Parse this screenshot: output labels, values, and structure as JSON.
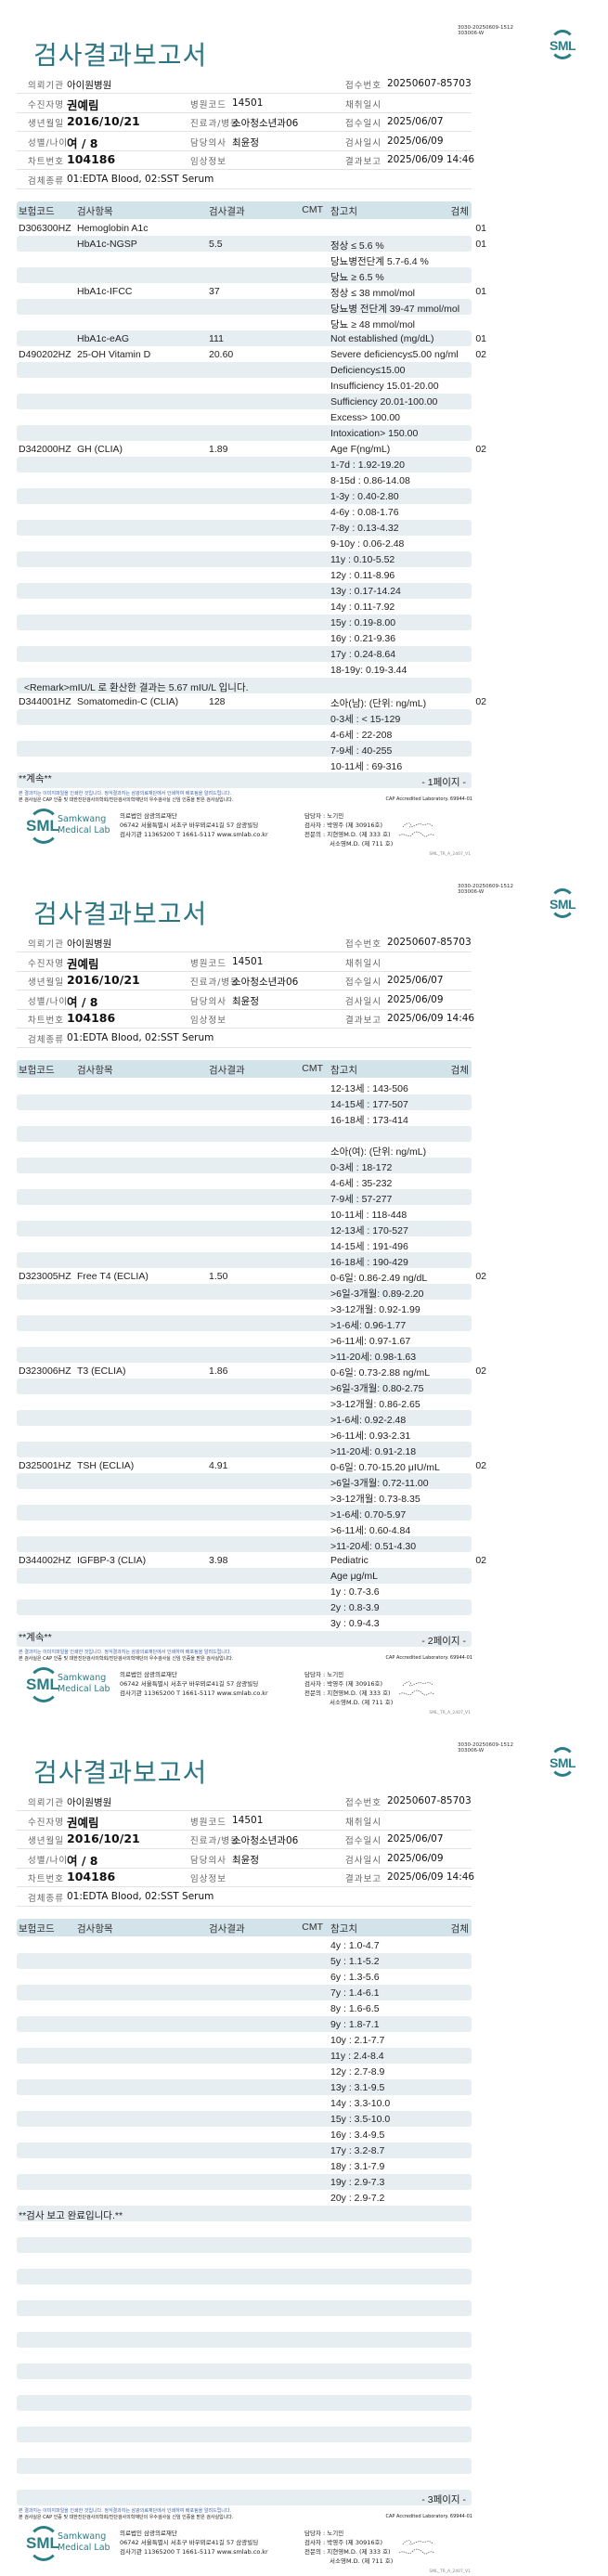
{
  "document": {
    "title": "검사결과보고서",
    "doc_code_1": "3030-20250609-1512",
    "doc_code_2": "303006-W",
    "logo_text": "SML",
    "brand_color": "#2b7481"
  },
  "patient": {
    "institution_label": "의뢰기관",
    "institution": "아이원병원",
    "receipt_no_label": "접수번호",
    "receipt_no": "20250607-85703",
    "name_label": "수진자명",
    "name": "권예림",
    "hospital_code_label": "병원코드",
    "hospital_code": "14501",
    "collection_label": "채취일시",
    "collection": "",
    "birth_label": "생년월일",
    "birth": "2016/10/21",
    "dept_label": "진료과/병동",
    "dept": "소아청소년과06",
    "received_label": "접수일시",
    "received": "2025/06/07",
    "sex_age_label": "성별/나이",
    "sex_age": "여 / 8",
    "doctor_label": "담당의사",
    "doctor": "최윤정",
    "tested_label": "검사일시",
    "tested": "2025/06/09",
    "chart_label": "차트번호",
    "chart": "104186",
    "clinical_label": "임상정보",
    "clinical": "",
    "reported_label": "결과보고",
    "reported": "2025/06/09 14:46",
    "specimen_label": "검체종류",
    "specimen": "01:EDTA Blood, 02:SST Serum"
  },
  "table_headers": [
    "보험코드",
    "검사항목",
    "검사결과",
    "CMT",
    "참고치",
    "검체"
  ],
  "pages": [
    {
      "continue_note": "**계속**",
      "page_label": "- 1페이지 -",
      "rows": [
        [
          "D306300HZ",
          "Hemoglobin A1c",
          "",
          "",
          "",
          "01"
        ],
        [
          "",
          "HbA1c-NGSP",
          "5.5",
          "",
          "정상 ≤ 5.6 %",
          "01"
        ],
        [
          "",
          "",
          "",
          "",
          "당뇨병전단계 5.7-6.4 %",
          ""
        ],
        [
          "",
          "",
          "",
          "",
          "당뇨 ≥ 6.5 %",
          ""
        ],
        [
          "",
          "HbA1c-IFCC",
          "37",
          "",
          "정상 ≤ 38 mmol/mol",
          "01"
        ],
        [
          "",
          "",
          "",
          "",
          "당뇨병 전단계 39-47 mmol/mol",
          ""
        ],
        [
          "",
          "",
          "",
          "",
          "당뇨 ≥ 48 mmol/mol",
          ""
        ],
        [
          "",
          "HbA1c-eAG",
          "111",
          "",
          "Not established (mg/dL)",
          "01"
        ],
        [
          "D490202HZ",
          "25-OH Vitamin D",
          "20.60",
          "",
          "Severe deficiency≤5.00 ng/ml",
          "02"
        ],
        [
          "",
          "",
          "",
          "",
          "Deficiency≤15.00",
          ""
        ],
        [
          "",
          "",
          "",
          "",
          "Insufficiency 15.01-20.00",
          ""
        ],
        [
          "",
          "",
          "",
          "",
          "Sufficiency 20.01-100.00",
          ""
        ],
        [
          "",
          "",
          "",
          "",
          "Excess> 100.00",
          ""
        ],
        [
          "",
          "",
          "",
          "",
          "Intoxication> 150.00",
          ""
        ],
        [
          "D342000HZ",
          "GH (CLIA)",
          "1.89",
          "",
          "Age F(ng/mL)",
          "02"
        ],
        [
          "",
          "",
          "",
          "",
          "1-7d : 1.92-19.20",
          ""
        ],
        [
          "",
          "",
          "",
          "",
          "8-15d : 0.86-14.08",
          ""
        ],
        [
          "",
          "",
          "",
          "",
          "1-3y : 0.40-2.80",
          ""
        ],
        [
          "",
          "",
          "",
          "",
          "4-6y : 0.08-1.76",
          ""
        ],
        [
          "",
          "",
          "",
          "",
          "7-8y : 0.13-4.32",
          ""
        ],
        [
          "",
          "",
          "",
          "",
          "9-10y : 0.06-2.48",
          ""
        ],
        [
          "",
          "",
          "",
          "",
          "11y : 0.10-5.52",
          ""
        ],
        [
          "",
          "",
          "",
          "",
          "12y : 0.11-8.96",
          ""
        ],
        [
          "",
          "",
          "",
          "",
          "13y : 0.17-14.24",
          ""
        ],
        [
          "",
          "",
          "",
          "",
          "14y : 0.11-7.92",
          ""
        ],
        [
          "",
          "",
          "",
          "",
          "15y : 0.19-8.00",
          ""
        ],
        [
          "",
          "",
          "",
          "",
          "16y : 0.21-9.36",
          ""
        ],
        [
          "",
          "",
          "",
          "",
          "17y : 0.24-8.64",
          ""
        ],
        [
          "",
          "",
          "",
          "",
          "18-19y: 0.19-3.44",
          ""
        ],
        [
          "  <Remark>mIU/L 로 환산한 결과는 5.67 mIU/L 입니다."
        ],
        [
          "D344001HZ",
          "Somatomedin-C (CLIA)",
          "128",
          "",
          "소아(남): (단위: ng/mL)",
          "02"
        ],
        [
          "",
          "",
          "",
          "",
          "0-3세 : < 15-129",
          ""
        ],
        [
          "",
          "",
          "",
          "",
          "4-6세 : 22-208",
          ""
        ],
        [
          "",
          "",
          "",
          "",
          "7-9세 : 40-255",
          ""
        ],
        [
          "",
          "",
          "",
          "",
          "10-11세 : 69-316",
          ""
        ]
      ]
    },
    {
      "continue_note": "**계속**",
      "page_label": "- 2페이지 -",
      "rows": [
        [
          "",
          "",
          "",
          "",
          "12-13세 : 143-506",
          ""
        ],
        [
          "",
          "",
          "",
          "",
          "14-15세 : 177-507",
          ""
        ],
        [
          "",
          "",
          "",
          "",
          "16-18세 : 173-414",
          ""
        ],
        [
          "",
          "",
          "",
          "",
          "",
          ""
        ],
        [
          "",
          "",
          "",
          "",
          "소아(여): (단위: ng/mL)",
          ""
        ],
        [
          "",
          "",
          "",
          "",
          "0-3세 : 18-172",
          ""
        ],
        [
          "",
          "",
          "",
          "",
          "4-6세 : 35-232",
          ""
        ],
        [
          "",
          "",
          "",
          "",
          "7-9세 : 57-277",
          ""
        ],
        [
          "",
          "",
          "",
          "",
          "10-11세 : 118-448",
          ""
        ],
        [
          "",
          "",
          "",
          "",
          "12-13세 : 170-527",
          ""
        ],
        [
          "",
          "",
          "",
          "",
          "14-15세 : 191-496",
          ""
        ],
        [
          "",
          "",
          "",
          "",
          "16-18세 : 190-429",
          ""
        ],
        [
          "D323005HZ",
          "Free T4 (ECLIA)",
          "1.50",
          "",
          "0-6일: 0.86-2.49 ng/dL",
          "02"
        ],
        [
          "",
          "",
          "",
          "",
          ">6일-3개월: 0.89-2.20",
          ""
        ],
        [
          "",
          "",
          "",
          "",
          ">3-12개월: 0.92-1.99",
          ""
        ],
        [
          "",
          "",
          "",
          "",
          ">1-6세: 0.96-1.77",
          ""
        ],
        [
          "",
          "",
          "",
          "",
          ">6-11세: 0.97-1.67",
          ""
        ],
        [
          "",
          "",
          "",
          "",
          ">11-20세: 0.98-1.63",
          ""
        ],
        [
          "D323006HZ",
          "T3 (ECLIA)",
          "1.86",
          "",
          "0-6일: 0.73-2.88 ng/mL",
          "02"
        ],
        [
          "",
          "",
          "",
          "",
          ">6일-3개월: 0.80-2.75",
          ""
        ],
        [
          "",
          "",
          "",
          "",
          ">3-12개월: 0.86-2.65",
          ""
        ],
        [
          "",
          "",
          "",
          "",
          ">1-6세: 0.92-2.48",
          ""
        ],
        [
          "",
          "",
          "",
          "",
          ">6-11세: 0.93-2.31",
          ""
        ],
        [
          "",
          "",
          "",
          "",
          ">11-20세: 0.91-2.18",
          ""
        ],
        [
          "D325001HZ",
          "TSH (ECLIA)",
          "4.91",
          "",
          "0-6일: 0.70-15.20 μIU/mL",
          "02"
        ],
        [
          "",
          "",
          "",
          "",
          ">6일-3개월: 0.72-11.00",
          ""
        ],
        [
          "",
          "",
          "",
          "",
          ">3-12개월: 0.73-8.35",
          ""
        ],
        [
          "",
          "",
          "",
          "",
          ">1-6세: 0.70-5.97",
          ""
        ],
        [
          "",
          "",
          "",
          "",
          ">6-11세: 0.60-4.84",
          ""
        ],
        [
          "",
          "",
          "",
          "",
          ">11-20세: 0.51-4.30",
          ""
        ],
        [
          "D344002HZ",
          "IGFBP-3 (CLIA)",
          "3.98",
          "",
          "Pediatric",
          "02"
        ],
        [
          "",
          "",
          "",
          "",
          "Age μg/mL",
          ""
        ],
        [
          "",
          "",
          "",
          "",
          "1y : 0.7-3.6",
          ""
        ],
        [
          "",
          "",
          "",
          "",
          "2y : 0.8-3.9",
          ""
        ],
        [
          "",
          "",
          "",
          "",
          "3y : 0.9-4.3",
          ""
        ]
      ]
    },
    {
      "continue_note": "",
      "page_label": "- 3페이지 -",
      "rows": [
        [
          "",
          "",
          "",
          "",
          "4y : 1.0-4.7",
          ""
        ],
        [
          "",
          "",
          "",
          "",
          "5y : 1.1-5.2",
          ""
        ],
        [
          "",
          "",
          "",
          "",
          "6y : 1.3-5.6",
          ""
        ],
        [
          "",
          "",
          "",
          "",
          "7y : 1.4-6.1",
          ""
        ],
        [
          "",
          "",
          "",
          "",
          "8y : 1.6-6.5",
          ""
        ],
        [
          "",
          "",
          "",
          "",
          "9y : 1.8-7.1",
          ""
        ],
        [
          "",
          "",
          "",
          "",
          "10y : 2.1-7.7",
          ""
        ],
        [
          "",
          "",
          "",
          "",
          "11y : 2.4-8.4",
          ""
        ],
        [
          "",
          "",
          "",
          "",
          "12y : 2.7-8.9",
          ""
        ],
        [
          "",
          "",
          "",
          "",
          "13y : 3.1-9.5",
          ""
        ],
        [
          "",
          "",
          "",
          "",
          "14y : 3.3-10.0",
          ""
        ],
        [
          "",
          "",
          "",
          "",
          "15y : 3.5-10.0",
          ""
        ],
        [
          "",
          "",
          "",
          "",
          "16y : 3.4-9.5",
          ""
        ],
        [
          "",
          "",
          "",
          "",
          "17y : 3.2-8.7",
          ""
        ],
        [
          "",
          "",
          "",
          "",
          "18y : 3.1-7.9",
          ""
        ],
        [
          "",
          "",
          "",
          "",
          "19y : 2.9-7.3",
          ""
        ],
        [
          "",
          "",
          "",
          "",
          "20y : 2.9-7.2",
          ""
        ],
        [
          "**검사 보고 완료입니다.**"
        ]
      ]
    }
  ],
  "footer": {
    "disclaimer_1": "본 결과지는 이미지파일을 인쇄한 것입니다. 정식결과지는 삼광의료재단에서 인쇄하여 배포됨을 알려드립니다.",
    "disclaimer_2": "본 검사실은 CAP 인증 및 대한진단검사의학회/진단검사의학재단의 우수검사실 신임 인증을 받은 검사실입니다.",
    "cap": "CAP Accredited Laboratory. 69944-01",
    "logo_abbr": "SML",
    "logo_name_1": "Samkwang",
    "logo_name_2": "Medical Lab",
    "org": "의료법인 삼광의료재단",
    "address": "06742 서울특별시 서초구 바우뫼로41길 57 삼광빌딩",
    "contact": "검사기관 11365200 T 1661-5117 www.smlab.co.kr",
    "manager": "담당자 :  노기민",
    "tester": "검사자 :  박영주 (제 30916호)",
    "specialist_1": "전문의 :  지현영M.D. (제 333 호)",
    "specialist_2": "서소영M.D. (제 711 호)",
    "version": "SML_TR_A_2407_V1"
  }
}
